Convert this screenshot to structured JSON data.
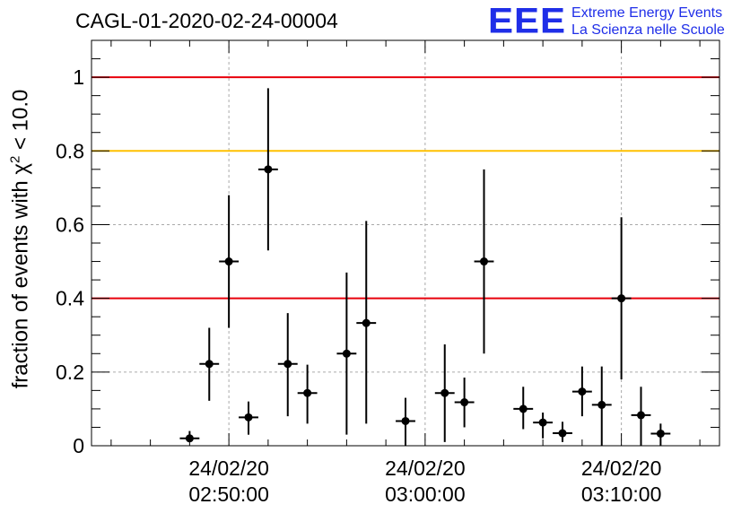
{
  "header": {
    "title": "CAGL-01-2020-02-24-00004",
    "logo_mark": "EEE",
    "logo_line1": "Extreme Energy Events",
    "logo_line2": "La Scienza nelle Scuole"
  },
  "axis": {
    "ylabel_prefix": "fraction of events with χ",
    "ylabel_sup": "2",
    "ylabel_suffix": " < 10.0"
  },
  "colors": {
    "threshold_red": "#e8000b",
    "threshold_yellow": "#ffc000",
    "points": "#000000",
    "logo": "#1f2ee8"
  },
  "chart_data": {
    "type": "scatter",
    "title": "CAGL-01-2020-02-24-00004",
    "xlabel": "",
    "ylabel": "fraction of events with χ² < 10.0",
    "x_unit": "minutes after 24/02/20 02:50:00",
    "xlim": [
      -3.5,
      12.5
    ],
    "ylim": [
      0,
      1.1
    ],
    "y_ticks": [
      0,
      0.2,
      0.4,
      0.6,
      0.8,
      1
    ],
    "y_tick_labels": [
      "0",
      "0.2",
      "0.4",
      "0.6",
      "0.8",
      "1"
    ],
    "x_ticks": [
      0,
      5,
      10
    ],
    "x_tick_labels": [
      [
        "24/02/20",
        "02:50:00"
      ],
      [
        "24/02/20",
        "03:00:00"
      ],
      [
        "24/02/20",
        "03:10:00"
      ]
    ],
    "grid": true,
    "threshold_lines": [
      {
        "y": 1.0,
        "color": "red"
      },
      {
        "y": 0.8,
        "color": "yellow"
      },
      {
        "y": 0.4,
        "color": "red"
      }
    ],
    "half_width_min": 0.25,
    "points": [
      {
        "x": -1.0,
        "y": 0.02,
        "lo": 0.01,
        "hi": 0.04
      },
      {
        "x": -0.5,
        "y": 0.222,
        "lo": 0.122,
        "hi": 0.32
      },
      {
        "x": 0.0,
        "y": 0.5,
        "lo": 0.32,
        "hi": 0.68
      },
      {
        "x": 0.5,
        "y": 0.077,
        "lo": 0.03,
        "hi": 0.12
      },
      {
        "x": 1.0,
        "y": 0.75,
        "lo": 0.53,
        "hi": 0.97
      },
      {
        "x": 1.5,
        "y": 0.222,
        "lo": 0.08,
        "hi": 0.36
      },
      {
        "x": 2.0,
        "y": 0.143,
        "lo": 0.06,
        "hi": 0.22
      },
      {
        "x": 3.0,
        "y": 0.25,
        "lo": 0.03,
        "hi": 0.47
      },
      {
        "x": 3.5,
        "y": 0.333,
        "lo": 0.06,
        "hi": 0.61
      },
      {
        "x": 4.5,
        "y": 0.067,
        "lo": 0.0,
        "hi": 0.13
      },
      {
        "x": 5.5,
        "y": 0.143,
        "lo": 0.01,
        "hi": 0.275
      },
      {
        "x": 6.0,
        "y": 0.118,
        "lo": 0.05,
        "hi": 0.185
      },
      {
        "x": 6.5,
        "y": 0.5,
        "lo": 0.25,
        "hi": 0.75
      },
      {
        "x": 7.5,
        "y": 0.1,
        "lo": 0.045,
        "hi": 0.16
      },
      {
        "x": 8.0,
        "y": 0.063,
        "lo": 0.02,
        "hi": 0.09
      },
      {
        "x": 8.5,
        "y": 0.034,
        "lo": 0.01,
        "hi": 0.065
      },
      {
        "x": 9.0,
        "y": 0.147,
        "lo": 0.08,
        "hi": 0.215
      },
      {
        "x": 9.5,
        "y": 0.111,
        "lo": 0.0,
        "hi": 0.215
      },
      {
        "x": 10.0,
        "y": 0.4,
        "lo": 0.18,
        "hi": 0.62
      },
      {
        "x": 10.5,
        "y": 0.083,
        "lo": 0.0,
        "hi": 0.16
      },
      {
        "x": 11.0,
        "y": 0.033,
        "lo": 0.0,
        "hi": 0.06
      }
    ]
  }
}
